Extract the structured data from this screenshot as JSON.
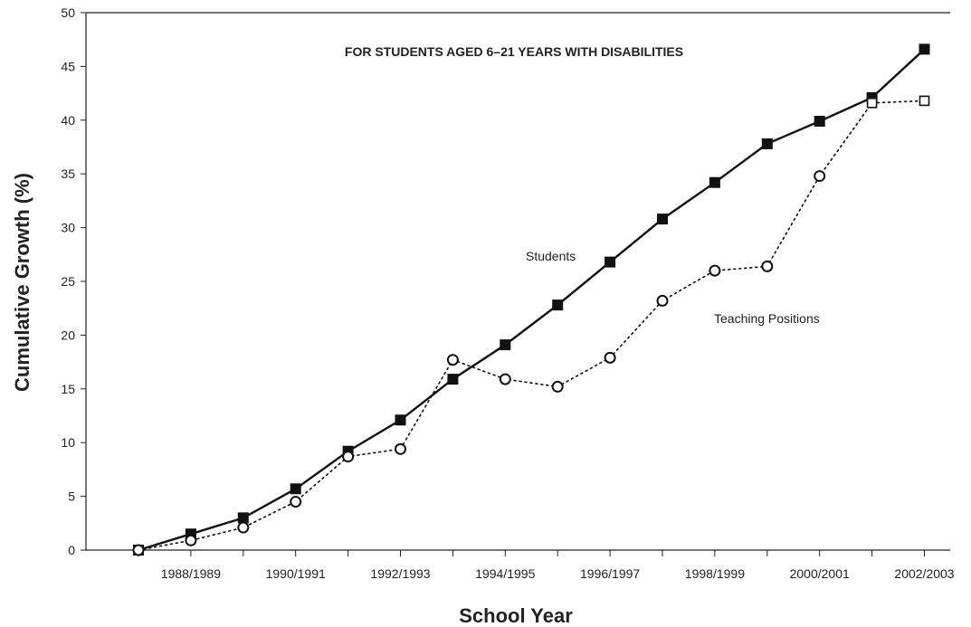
{
  "chart_data": {
    "type": "line",
    "title": "FOR STUDENTS AGED 6–21 YEARS WITH DISABILITIES",
    "xlabel": "School Year",
    "ylabel": "Cumulative Growth (%)",
    "ylim": [
      0,
      50
    ],
    "y_ticks": [
      0,
      5,
      10,
      15,
      20,
      25,
      30,
      35,
      40,
      45,
      50
    ],
    "x_tick_labels": [
      "1988/1989",
      "1990/1991",
      "1992/1993",
      "1994/1995",
      "1996/1997",
      "1998/1999",
      "2000/2001",
      "2002/2003"
    ],
    "x": [
      "1987/1988",
      "1988/1989",
      "1989/1990",
      "1990/1991",
      "1991/1992",
      "1992/1993",
      "1993/1994",
      "1994/1995",
      "1995/1996",
      "1996/1997",
      "1997/1998",
      "1998/1999",
      "1999/2000",
      "2000/2001",
      "2001/2002",
      "2002/2003"
    ],
    "series": [
      {
        "name": "Students",
        "style": "solid",
        "marker": "filled-square",
        "color": "#111111",
        "values": [
          0,
          1.5,
          3,
          5.7,
          9.2,
          12.1,
          15.9,
          19.1,
          22.8,
          26.8,
          30.8,
          34.2,
          37.8,
          39.9,
          42.1,
          46.6
        ]
      },
      {
        "name": "Teaching Positions",
        "style": "dotted",
        "marker": "open-circle",
        "color": "#111111",
        "values": [
          0,
          0.9,
          2.1,
          4.5,
          8.7,
          9.4,
          17.7,
          15.9,
          15.2,
          17.9,
          23.2,
          26.0,
          26.4,
          34.8,
          41.6,
          41.8
        ]
      }
    ],
    "annotations": [
      {
        "text": "Students"
      },
      {
        "text": "Teaching Positions"
      }
    ],
    "grid": false,
    "legend": "none"
  }
}
